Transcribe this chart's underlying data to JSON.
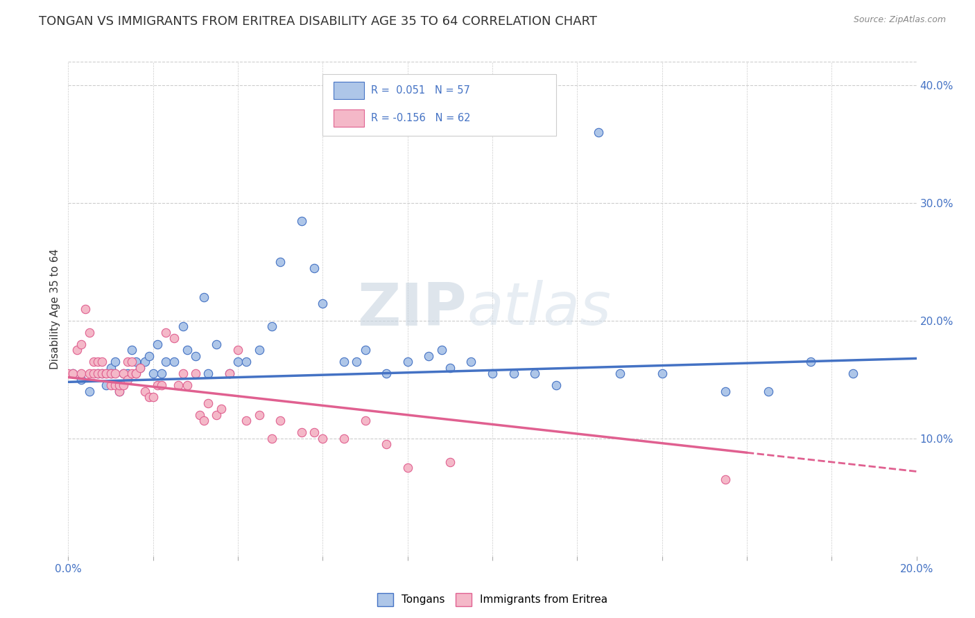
{
  "title": "TONGAN VS IMMIGRANTS FROM ERITREA DISABILITY AGE 35 TO 64 CORRELATION CHART",
  "source": "Source: ZipAtlas.com",
  "ylabel": "Disability Age 35 to 64",
  "xlim": [
    0.0,
    0.2
  ],
  "ylim": [
    0.0,
    0.42
  ],
  "y_ticks_right": [
    0.1,
    0.2,
    0.3,
    0.4
  ],
  "y_tick_labels_right": [
    "10.0%",
    "20.0%",
    "30.0%",
    "40.0%"
  ],
  "blue_scatter_x": [
    0.001,
    0.003,
    0.005,
    0.007,
    0.008,
    0.009,
    0.01,
    0.01,
    0.011,
    0.012,
    0.013,
    0.014,
    0.015,
    0.016,
    0.017,
    0.018,
    0.019,
    0.02,
    0.021,
    0.022,
    0.023,
    0.025,
    0.027,
    0.028,
    0.03,
    0.032,
    0.033,
    0.035,
    0.038,
    0.04,
    0.042,
    0.045,
    0.048,
    0.05,
    0.055,
    0.058,
    0.06,
    0.065,
    0.068,
    0.07,
    0.075,
    0.08,
    0.085,
    0.088,
    0.09,
    0.095,
    0.1,
    0.105,
    0.11,
    0.115,
    0.125,
    0.13,
    0.14,
    0.155,
    0.165,
    0.175,
    0.185
  ],
  "blue_scatter_y": [
    0.155,
    0.15,
    0.14,
    0.155,
    0.155,
    0.145,
    0.16,
    0.155,
    0.165,
    0.14,
    0.155,
    0.155,
    0.175,
    0.165,
    0.16,
    0.165,
    0.17,
    0.155,
    0.18,
    0.155,
    0.165,
    0.165,
    0.195,
    0.175,
    0.17,
    0.22,
    0.155,
    0.18,
    0.155,
    0.165,
    0.165,
    0.175,
    0.195,
    0.25,
    0.285,
    0.245,
    0.215,
    0.165,
    0.165,
    0.175,
    0.155,
    0.165,
    0.17,
    0.175,
    0.16,
    0.165,
    0.155,
    0.155,
    0.155,
    0.145,
    0.36,
    0.155,
    0.155,
    0.14,
    0.14,
    0.165,
    0.155
  ],
  "pink_scatter_x": [
    0.0,
    0.001,
    0.002,
    0.003,
    0.003,
    0.004,
    0.005,
    0.005,
    0.006,
    0.006,
    0.007,
    0.007,
    0.008,
    0.008,
    0.009,
    0.009,
    0.01,
    0.01,
    0.011,
    0.011,
    0.012,
    0.012,
    0.013,
    0.013,
    0.014,
    0.014,
    0.015,
    0.015,
    0.016,
    0.016,
    0.017,
    0.018,
    0.019,
    0.02,
    0.021,
    0.022,
    0.023,
    0.025,
    0.026,
    0.027,
    0.028,
    0.03,
    0.031,
    0.032,
    0.033,
    0.035,
    0.036,
    0.038,
    0.04,
    0.042,
    0.045,
    0.048,
    0.05,
    0.055,
    0.058,
    0.06,
    0.065,
    0.07,
    0.075,
    0.08,
    0.09,
    0.155
  ],
  "pink_scatter_y": [
    0.155,
    0.155,
    0.175,
    0.155,
    0.18,
    0.21,
    0.155,
    0.19,
    0.155,
    0.165,
    0.155,
    0.165,
    0.155,
    0.165,
    0.155,
    0.155,
    0.155,
    0.145,
    0.145,
    0.155,
    0.14,
    0.145,
    0.145,
    0.155,
    0.15,
    0.165,
    0.155,
    0.165,
    0.155,
    0.155,
    0.16,
    0.14,
    0.135,
    0.135,
    0.145,
    0.145,
    0.19,
    0.185,
    0.145,
    0.155,
    0.145,
    0.155,
    0.12,
    0.115,
    0.13,
    0.12,
    0.125,
    0.155,
    0.175,
    0.115,
    0.12,
    0.1,
    0.115,
    0.105,
    0.105,
    0.1,
    0.1,
    0.115,
    0.095,
    0.075,
    0.08,
    0.065
  ],
  "blue_trend_x": [
    0.0,
    0.2
  ],
  "blue_trend_y": [
    0.148,
    0.168
  ],
  "pink_trend_x": [
    0.0,
    0.2
  ],
  "pink_trend_y": [
    0.152,
    0.072
  ],
  "blue_color": "#4472c4",
  "pink_color": "#e06090",
  "blue_scatter_color": "#aec6e8",
  "pink_scatter_color": "#f4b8c8",
  "blue_text_color": "#4472c4",
  "pink_text_color": "#4472c4",
  "background_color": "#ffffff",
  "grid_color": "#cccccc",
  "title_fontsize": 13,
  "watermark_zip": "ZIP",
  "watermark_atlas": "atlas",
  "bottom_legend": [
    "Tongans",
    "Immigrants from Eritrea"
  ]
}
